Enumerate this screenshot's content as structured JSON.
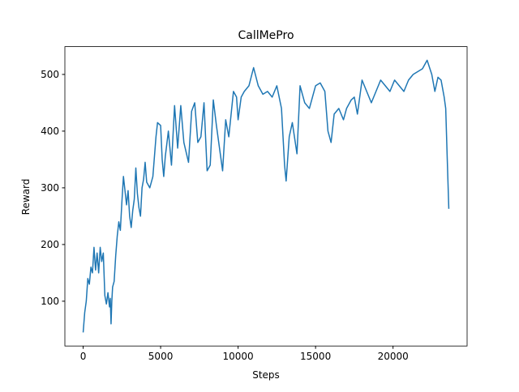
{
  "chart_data": {
    "type": "line",
    "title": "CallMePro",
    "x_label": "Steps",
    "y_label": "Reward",
    "x": [
      0,
      100,
      200,
      300,
      400,
      500,
      600,
      700,
      800,
      900,
      1000,
      1100,
      1200,
      1300,
      1400,
      1500,
      1600,
      1700,
      1750,
      1800,
      1850,
      1900,
      2000,
      2100,
      2200,
      2300,
      2400,
      2500,
      2600,
      2700,
      2800,
      2900,
      3000,
      3100,
      3200,
      3300,
      3400,
      3500,
      3600,
      3700,
      3800,
      3900,
      4000,
      4100,
      4300,
      4500,
      4700,
      4800,
      5000,
      5100,
      5200,
      5300,
      5500,
      5700,
      5900,
      6100,
      6300,
      6500,
      6800,
      7000,
      7200,
      7400,
      7600,
      7800,
      8000,
      8200,
      8400,
      8600,
      8800,
      9000,
      9200,
      9400,
      9700,
      9900,
      10000,
      10200,
      10400,
      10700,
      11000,
      11300,
      11600,
      11900,
      12200,
      12500,
      12800,
      13000,
      13100,
      13300,
      13500,
      13800,
      14000,
      14300,
      14600,
      15000,
      15300,
      15600,
      15800,
      16000,
      16200,
      16500,
      16800,
      17000,
      17300,
      17500,
      17700,
      18000,
      18300,
      18600,
      18900,
      19200,
      19500,
      19800,
      20100,
      20400,
      20700,
      21000,
      21300,
      21600,
      21900,
      22200,
      22500,
      22700,
      22900,
      23100,
      23300,
      23400,
      23500,
      23600
    ],
    "series": [
      {
        "name": "Reward",
        "color": "#1f77b4",
        "values": [
          45,
          80,
          100,
          140,
          130,
          160,
          150,
          195,
          155,
          185,
          150,
          195,
          170,
          185,
          110,
          95,
          115,
          90,
          105,
          60,
          100,
          125,
          135,
          180,
          215,
          240,
          225,
          275,
          320,
          295,
          270,
          295,
          250,
          230,
          260,
          280,
          335,
          290,
          265,
          250,
          300,
          315,
          345,
          310,
          300,
          320,
          390,
          415,
          410,
          350,
          320,
          355,
          400,
          340,
          445,
          370,
          445,
          380,
          345,
          435,
          450,
          380,
          390,
          450,
          330,
          340,
          455,
          410,
          370,
          330,
          420,
          390,
          470,
          460,
          420,
          460,
          470,
          480,
          512,
          480,
          465,
          470,
          460,
          480,
          440,
          340,
          312,
          390,
          415,
          360,
          480,
          450,
          440,
          480,
          485,
          470,
          400,
          380,
          430,
          440,
          420,
          440,
          455,
          460,
          430,
          490,
          470,
          450,
          470,
          490,
          480,
          470,
          490,
          480,
          470,
          490,
          500,
          505,
          510,
          525,
          500,
          470,
          495,
          490,
          460,
          440,
          350,
          263
        ]
      }
    ],
    "xlim": [
      -1180,
      24780
    ],
    "ylim": [
      21,
      549
    ],
    "xticks": [
      0,
      5000,
      10000,
      15000,
      20000
    ],
    "yticks": [
      100,
      200,
      300,
      400,
      500
    ]
  }
}
